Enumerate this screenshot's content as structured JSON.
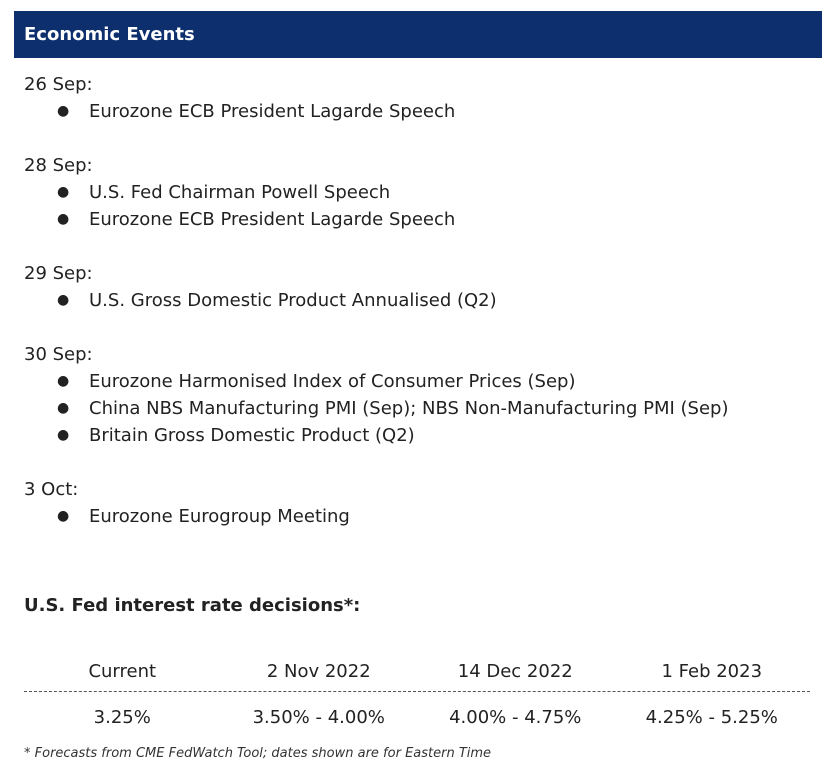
{
  "header": {
    "title": "Economic Events"
  },
  "events": [
    {
      "date": "26 Sep:",
      "items": [
        "Eurozone ECB President Lagarde Speech"
      ]
    },
    {
      "date": "28 Sep:",
      "items": [
        "U.S. Fed Chairman Powell Speech",
        "Eurozone ECB President Lagarde Speech"
      ]
    },
    {
      "date": "29 Sep:",
      "items": [
        "U.S. Gross Domestic Product Annualised (Q2)"
      ]
    },
    {
      "date": "30 Sep:",
      "items": [
        "Eurozone Harmonised Index of Consumer Prices (Sep)",
        "China NBS Manufacturing PMI (Sep); NBS Non-Manufacturing PMI (Sep)",
        "Britain Gross Domestic Product (Q2)"
      ]
    },
    {
      "date": "3 Oct:",
      "items": [
        "Eurozone Eurogroup Meeting"
      ]
    }
  ],
  "bullet_char": "●",
  "fed": {
    "title": "U.S. Fed interest rate decisions*:",
    "headers": [
      "Current",
      "2 Nov 2022",
      "14 Dec 2022",
      "1 Feb 2023"
    ],
    "values": [
      "3.25%",
      "3.50% - 4.00%",
      "4.00% - 4.75%",
      "4.25% - 5.25%"
    ]
  },
  "footnote": "* Forecasts from CME FedWatch Tool; dates shown are for Eastern Time",
  "colors": {
    "header_bg": "#0d2f6e",
    "header_text": "#ffffff"
  }
}
